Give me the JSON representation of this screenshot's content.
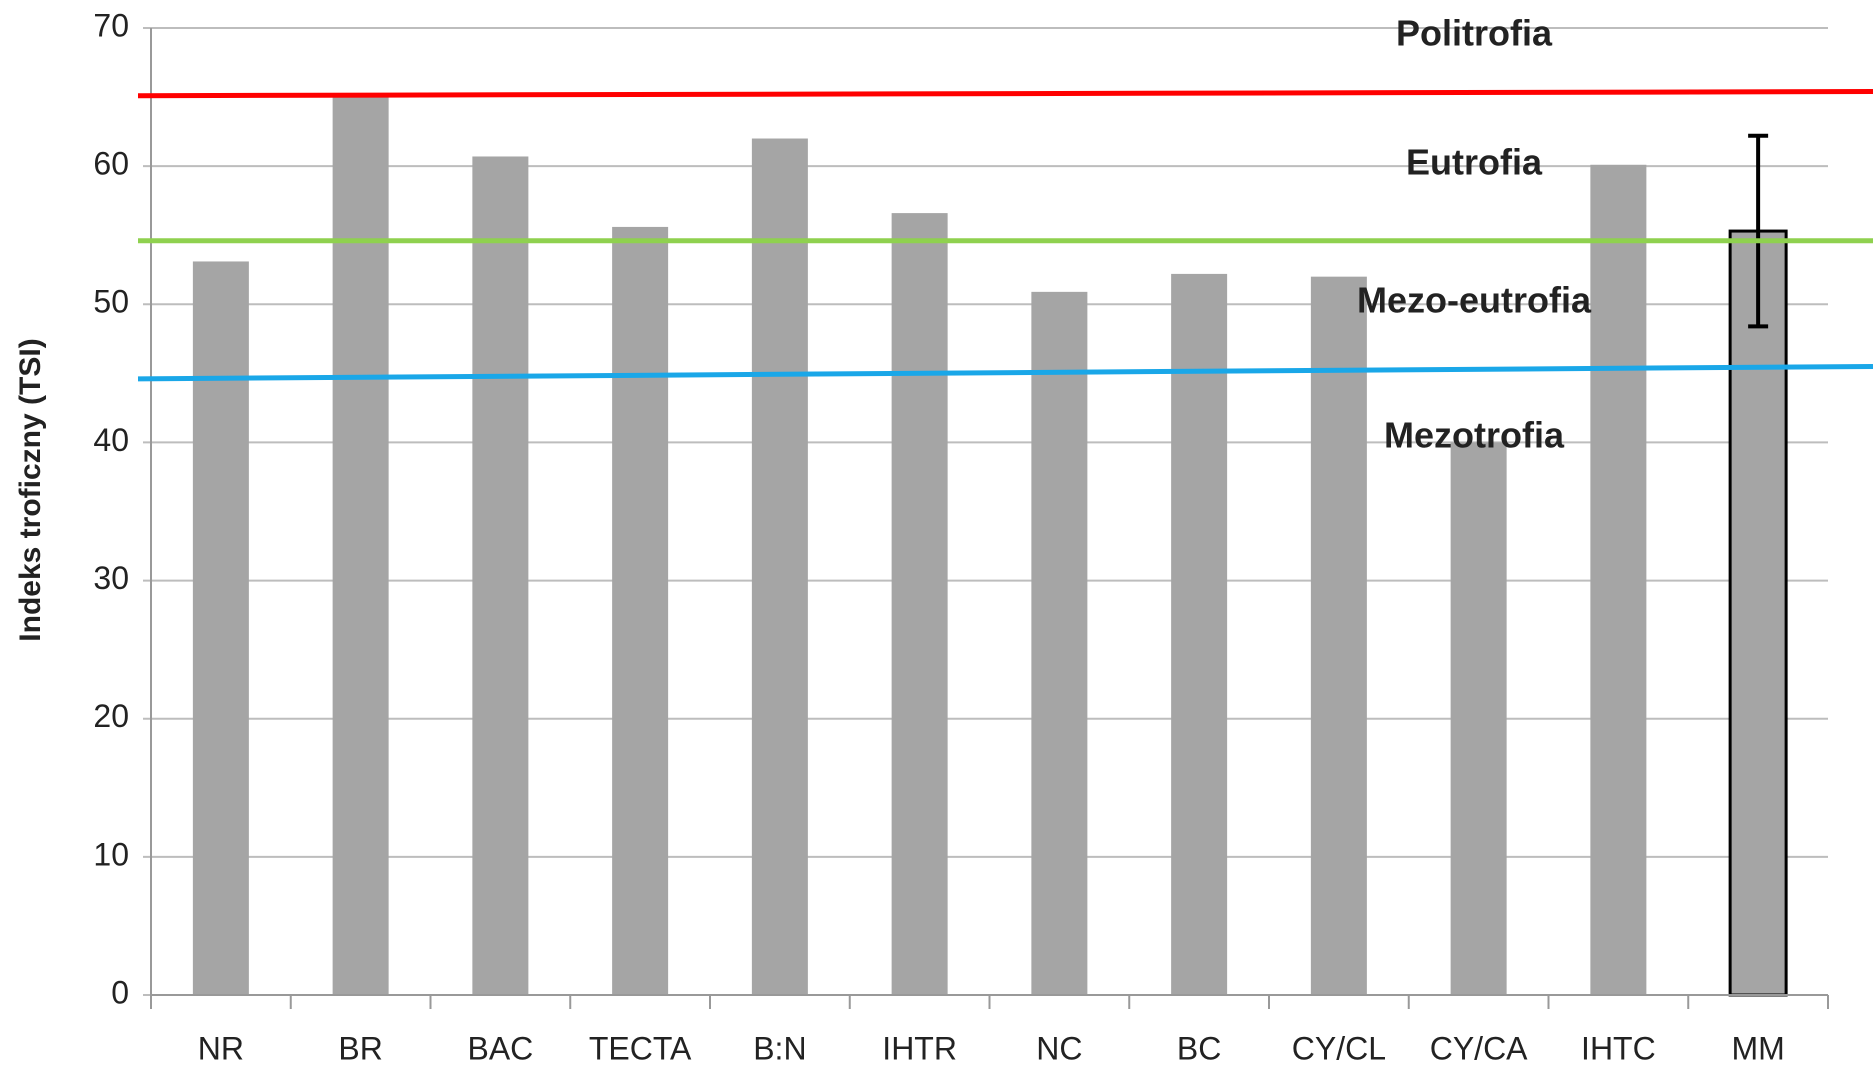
{
  "chart_data": {
    "type": "bar",
    "y_label": "Indeks troficzny (TSI)",
    "categories": [
      "NR",
      "BR",
      "BAC",
      "TECTA",
      "B:N",
      "IHTR",
      "NC",
      "BC",
      "CY/CL",
      "CY/CA",
      "IHTC",
      "MM"
    ],
    "values": [
      53.1,
      65.2,
      60.7,
      55.6,
      62.0,
      56.6,
      50.9,
      52.2,
      52.0,
      40.0,
      60.1,
      55.3
    ],
    "errors": [
      null,
      null,
      null,
      null,
      null,
      null,
      null,
      null,
      null,
      null,
      null,
      6.9
    ],
    "color": "#a5a5a5",
    "ylim": [
      0,
      70
    ],
    "yticks": [
      0,
      10,
      20,
      30,
      40,
      50,
      60,
      70
    ],
    "grid": true,
    "reference_lines": [
      {
        "color": "#ff0000",
        "values": [
          65.1,
          65.4
        ]
      },
      {
        "color": "#8fd14f",
        "values": [
          54.6,
          54.6
        ]
      },
      {
        "color": "#1aa7e8",
        "values": [
          44.6,
          45.5
        ]
      }
    ],
    "annotations": [
      "Politrofia",
      "Eutrofia",
      "Mezo-eutrofia",
      "Mezotrofia"
    ]
  }
}
